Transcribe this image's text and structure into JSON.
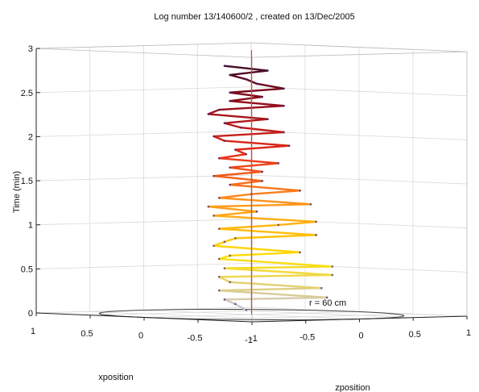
{
  "chart_data": {
    "type": "line",
    "title": "Log number 13/140600/2 , created on 13/Dec/2005",
    "zlabel": "Time (min)",
    "xlabel": "xposition",
    "ylabel": "zposition",
    "zlim": [
      0,
      3
    ],
    "xlim": [
      -1,
      1
    ],
    "ylim": [
      -1,
      1
    ],
    "z_ticks": [
      "0",
      "0.5",
      "1",
      "1.5",
      "2",
      "2.5",
      "3"
    ],
    "x_ticks": [
      "1",
      "0.5",
      "0",
      "-0.5",
      "-1"
    ],
    "y_ticks": [
      "-1",
      "-0.5",
      "0",
      "0.5",
      "1"
    ],
    "grid": true,
    "annotation": "r = 60 cm",
    "circle_radius": 1,
    "reference_axis": {
      "x": 0,
      "y": 0,
      "z": [
        0,
        3
      ],
      "color": "#e8402a"
    },
    "colormap": [
      "#c8c2e6",
      "#ffe000",
      "#ff9a1a",
      "#e62a1a",
      "#8a0a1a",
      "#1a1030"
    ],
    "trajectory": {
      "t": [
        0.05,
        0.1,
        0.15,
        0.2,
        0.25,
        0.3,
        0.35,
        0.4,
        0.45,
        0.5,
        0.55,
        0.6,
        0.65,
        0.7,
        0.75,
        0.8,
        0.85,
        0.9,
        0.95,
        1.0,
        1.05,
        1.1,
        1.15,
        1.2,
        1.25,
        1.3,
        1.35,
        1.4,
        1.45,
        1.5,
        1.55,
        1.6,
        1.65,
        1.7,
        1.75,
        1.8,
        1.85,
        1.9,
        1.95,
        2.0,
        2.05,
        2.1,
        2.15,
        2.2,
        2.25,
        2.3,
        2.35,
        2.4,
        2.45,
        2.5,
        2.55,
        2.6,
        2.65,
        2.7,
        2.75,
        2.8
      ],
      "x": [
        0.05,
        0.3,
        0.35,
        -0.35,
        0.4,
        -0.25,
        0.3,
        0.45,
        -0.3,
        0.4,
        -0.35,
        0.5,
        0.3,
        -0.1,
        0.5,
        0.4,
        0.25,
        -0.2,
        0.4,
        0.1,
        -0.2,
        0.4,
        0.2,
        0.45,
        -0.2,
        0.4,
        0.2,
        -0.1,
        0.35,
        0.15,
        0.4,
        0.2,
        0.3,
        0.1,
        0.4,
        0.25,
        0.3,
        0.05,
        0.35,
        0.4,
        0.1,
        0.3,
        0.35,
        0.15,
        0.45,
        0.4,
        0.1,
        0.35,
        0.2,
        0.3,
        0.05,
        0.2,
        0.25,
        0.3,
        0.15,
        0.35
      ],
      "y": [
        0.0,
        0.15,
        0.1,
        0.35,
        0.1,
        0.4,
        0.1,
        0.15,
        0.45,
        0.15,
        0.4,
        0.2,
        0.1,
        0.35,
        0.15,
        0.15,
        0.1,
        0.4,
        0.1,
        0.35,
        0.4,
        0.05,
        0.25,
        0.05,
        0.35,
        0.1,
        0.2,
        0.35,
        0.15,
        0.25,
        0.05,
        0.3,
        0.1,
        0.35,
        0.1,
        0.2,
        0.15,
        0.4,
        0.1,
        0.05,
        0.4,
        0.2,
        0.1,
        0.3,
        0.05,
        0.1,
        0.4,
        0.15,
        0.3,
        0.1,
        0.35,
        0.25,
        0.2,
        0.1,
        0.3,
        0.1
      ]
    }
  }
}
